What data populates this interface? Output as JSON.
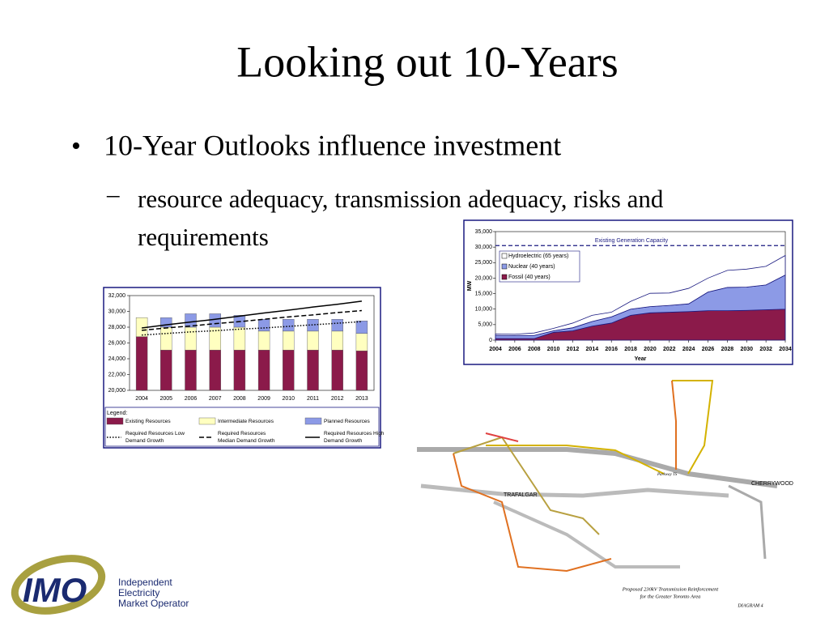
{
  "slide": {
    "title": "Looking out 10-Years",
    "bullet": "10-Year Outlooks influence investment",
    "sub_bullet": "resource adequacy, transmission adequacy, risks and requirements"
  },
  "chart_data": [
    {
      "type": "bar",
      "legend_title": "Legend:",
      "categories": [
        "2004",
        "2005",
        "2006",
        "2007",
        "2008",
        "2009",
        "2010",
        "2011",
        "2012",
        "2013"
      ],
      "ylim": [
        20000,
        32000
      ],
      "yticks": [
        {
          "value": 20000,
          "label": "20,000"
        },
        {
          "value": 22000,
          "label": "22,000"
        },
        {
          "value": 24000,
          "label": "24,000"
        },
        {
          "value": 26000,
          "label": "26,000"
        },
        {
          "value": 28000,
          "label": "28,000"
        },
        {
          "value": 30000,
          "label": "30,000"
        },
        {
          "value": 32000,
          "label": "32,000"
        }
      ],
      "series": [
        {
          "name": "Existing Resources",
          "color": "#8b1a4a",
          "style": "bar",
          "values": [
            26800,
            25100,
            25100,
            25100,
            25100,
            25100,
            25100,
            25100,
            25100,
            25000
          ]
        },
        {
          "name": "Intermediate Resources",
          "color": "#ffffc0",
          "style": "bar",
          "values": [
            2400,
            2900,
            2900,
            2900,
            2900,
            2400,
            2400,
            2400,
            2400,
            2200
          ]
        },
        {
          "name": "Planned Resources",
          "color": "#8c9ae6",
          "style": "bar",
          "values": [
            0,
            1200,
            1700,
            1700,
            1500,
            1500,
            1500,
            1500,
            1500,
            1600
          ]
        },
        {
          "name": "Required Resources Low Demand Growth",
          "color": "#000000",
          "style": "dotted",
          "values": [
            27000,
            27200,
            27400,
            27550,
            27750,
            27900,
            28100,
            28300,
            28500,
            28700
          ]
        },
        {
          "name": "Required Resources Median Demand Growth",
          "color": "#000000",
          "style": "dashed",
          "values": [
            27600,
            27900,
            28150,
            28450,
            28700,
            29000,
            29300,
            29550,
            29850,
            30100
          ]
        },
        {
          "name": "Required Resources High Demand Growth",
          "color": "#000000",
          "style": "solid",
          "values": [
            27900,
            28300,
            28650,
            29000,
            29400,
            29800,
            30150,
            30550,
            30900,
            31300
          ]
        }
      ]
    },
    {
      "type": "area",
      "x_label": "Year",
      "y_label": "MW",
      "x": [
        2004,
        2006,
        2008,
        2010,
        2012,
        2014,
        2016,
        2018,
        2020,
        2022,
        2024,
        2026,
        2028,
        2030,
        2032,
        2034
      ],
      "xlim": [
        2004,
        2034
      ],
      "xticks": [
        2004,
        2006,
        2008,
        2010,
        2012,
        2014,
        2016,
        2018,
        2020,
        2022,
        2024,
        2026,
        2028,
        2030,
        2032,
        2034
      ],
      "ylim": [
        0,
        35000
      ],
      "yticks": [
        0,
        {
          "value": 5000,
          "label": "5,000"
        },
        {
          "value": 10000,
          "label": "10,000"
        },
        {
          "value": 15000,
          "label": "15,000"
        },
        {
          "value": 20000,
          "label": "20,000"
        },
        {
          "value": 25000,
          "label": "25,000"
        },
        {
          "value": 30000,
          "label": "30,000"
        },
        {
          "value": 35000,
          "label": "35,000"
        }
      ],
      "reference_line": {
        "label": "Existing Generation Capacity",
        "value": 30500,
        "color": "#1a1a80"
      },
      "series": [
        {
          "name": "Fossil (40 years)",
          "color": "#8b1a4a",
          "values": [
            500,
            500,
            500,
            2500,
            3000,
            4500,
            5500,
            8000,
            8800,
            9000,
            9200,
            9500,
            9500,
            9600,
            9800,
            10000
          ]
        },
        {
          "name": "Nuclear (40 years)",
          "color": "#8c9ae6",
          "values": [
            1000,
            1000,
            1000,
            500,
            1000,
            1500,
            2000,
            2000,
            2000,
            2200,
            2500,
            6000,
            7500,
            7500,
            8000,
            11000
          ]
        },
        {
          "name": "Hydroelectric (65 years)",
          "color": "#ffffff",
          "values": [
            500,
            400,
            800,
            800,
            1500,
            2000,
            1500,
            2500,
            4300,
            4000,
            5000,
            4500,
            5500,
            5800,
            6000,
            6300
          ]
        }
      ]
    }
  ],
  "diagram": {
    "labels": [
      "TRAFALGAR",
      "CHERRYWOOD",
      "Parkway TS"
    ],
    "caption_1": "Proposed 230kV Transmission Reinforcement",
    "caption_2": "for the Greater Toronto Area",
    "number": "DIAGRAM 4"
  },
  "logo": {
    "mark": "IMO",
    "line_1": "Independent",
    "line_2": "Electricity",
    "line_3": "Market Operator"
  }
}
